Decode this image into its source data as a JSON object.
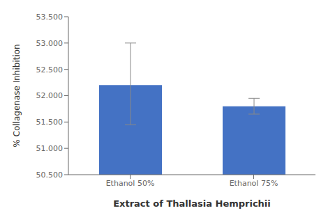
{
  "chart_data": {
    "type": "bar",
    "categories": [
      "Ethanol 50%",
      "Ethanol 75%"
    ],
    "values": [
      52.2,
      51.8
    ],
    "errors_lower": [
      0.75,
      0.15
    ],
    "errors_upper": [
      0.8,
      0.15
    ],
    "color": "#4472C4",
    "ylim": [
      50.5,
      53.5
    ],
    "yticks": [
      {
        "value": 50.5,
        "label": "50.500"
      },
      {
        "value": 51,
        "label": "51.000"
      },
      {
        "value": 51.5,
        "label": "51.500"
      },
      {
        "value": 52,
        "label": "52.000"
      },
      {
        "value": 52.5,
        "label": "52.500"
      },
      {
        "value": 53,
        "label": "53.000"
      },
      {
        "value": 53.5,
        "label": "53.500"
      }
    ],
    "ylabel": "% Collagenase Inhibition",
    "xlabel": "Extract of Thallasia Hemprichii",
    "grid": false
  }
}
